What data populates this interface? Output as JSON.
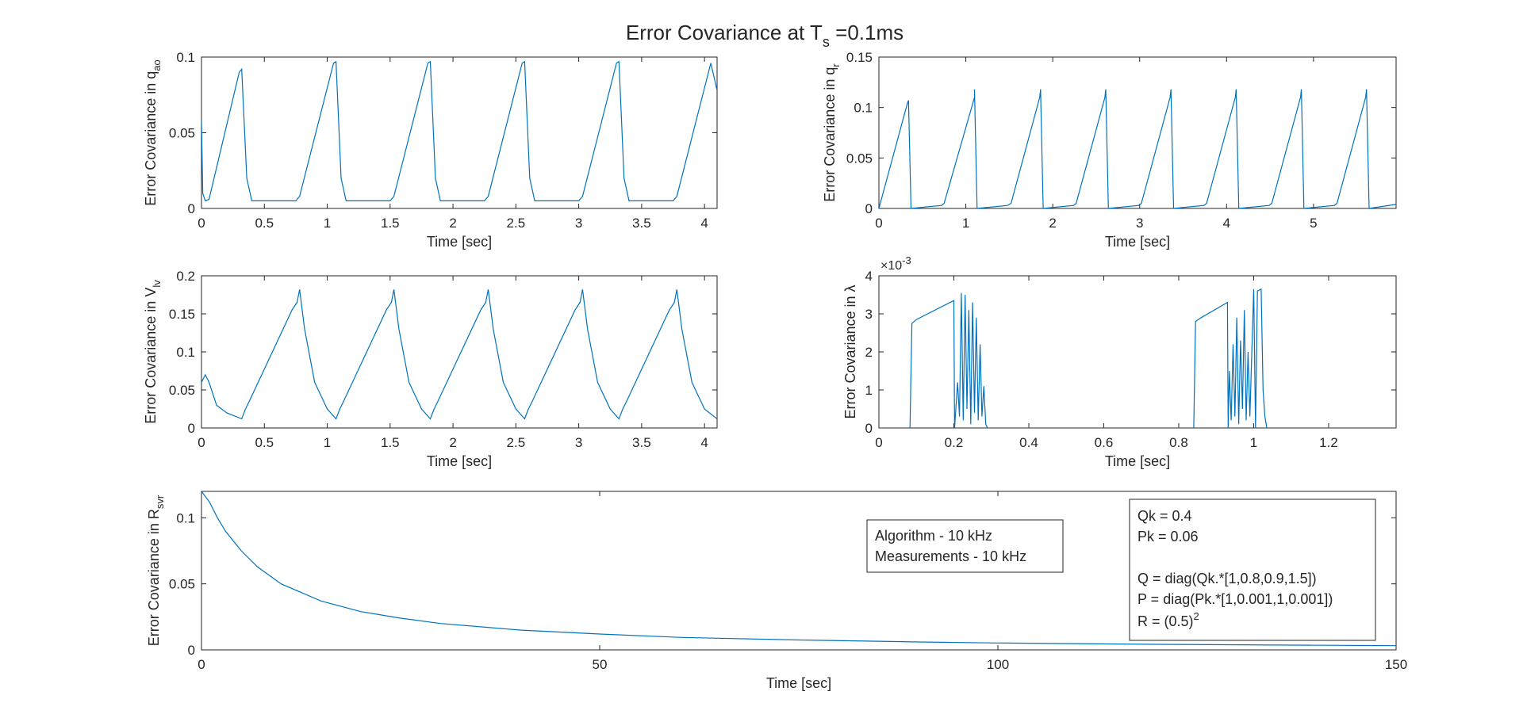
{
  "figure": {
    "title_main": "Error Covariance at T",
    "title_sub": "s",
    "title_tail": " =0.1ms"
  },
  "colors": {
    "line": "#0072BD",
    "axis": "#262626",
    "background": "#ffffff"
  },
  "chart_data": [
    {
      "type": "line",
      "ylabel_main": "Error Covariance in q",
      "ylabel_sub": "ao",
      "xlabel": "Time [sec]",
      "xlim": [
        0,
        4.1
      ],
      "ylim": [
        0,
        0.1
      ],
      "xticks": [
        0,
        0.5,
        1,
        1.5,
        2,
        2.5,
        3,
        3.5,
        4
      ],
      "xtick_labels": [
        "0",
        "0.5",
        "1",
        "1.5",
        "2",
        "2.5",
        "3",
        "3.5",
        "4"
      ],
      "yticks": [
        0,
        0.05,
        0.1
      ],
      "ytick_labels": [
        "0",
        "0.05",
        "0.1"
      ],
      "series": [
        {
          "x": [
            0,
            0.01,
            0.03,
            0.06,
            0.3,
            0.32,
            0.36,
            0.4,
            0.75,
            0.78,
            1.05,
            1.07,
            1.11,
            1.15,
            1.5,
            1.53,
            1.8,
            1.82,
            1.86,
            1.9,
            2.25,
            2.28,
            2.55,
            2.57,
            2.61,
            2.65,
            3.0,
            3.03,
            3.3,
            3.32,
            3.36,
            3.4,
            3.75,
            3.78,
            4.05,
            4.1
          ],
          "y": [
            0.058,
            0.01,
            0.005,
            0.006,
            0.09,
            0.092,
            0.02,
            0.005,
            0.005,
            0.008,
            0.096,
            0.097,
            0.02,
            0.005,
            0.005,
            0.008,
            0.096,
            0.097,
            0.02,
            0.005,
            0.005,
            0.008,
            0.096,
            0.097,
            0.02,
            0.005,
            0.005,
            0.008,
            0.096,
            0.097,
            0.02,
            0.005,
            0.005,
            0.008,
            0.096,
            0.078
          ]
        }
      ]
    },
    {
      "type": "line",
      "ylabel_main": "Error Covariance in q",
      "ylabel_sub": "r",
      "xlabel": "Time [sec]",
      "xlim": [
        0,
        5.95
      ],
      "ylim": [
        0,
        0.15
      ],
      "xticks": [
        0,
        1,
        2,
        3,
        4,
        5
      ],
      "xtick_labels": [
        "0",
        "1",
        "2",
        "3",
        "4",
        "5"
      ],
      "yticks": [
        0,
        0.05,
        0.1,
        0.15
      ],
      "ytick_labels": [
        "0",
        "0.05",
        "0.1",
        "0.15"
      ],
      "series": [
        {
          "x": [
            0,
            0.33,
            0.34,
            0.37,
            0.72,
            0.75,
            1.1,
            1.1,
            1.13,
            1.48,
            1.52,
            1.85,
            1.86,
            1.89,
            2.24,
            2.27,
            2.6,
            2.61,
            2.64,
            2.99,
            3.02,
            3.35,
            3.36,
            3.39,
            3.74,
            3.77,
            4.1,
            4.11,
            4.14,
            4.49,
            4.52,
            4.85,
            4.86,
            4.89,
            5.24,
            5.27,
            5.6,
            5.61,
            5.64,
            5.95
          ],
          "y": [
            0,
            0.105,
            0.107,
            0,
            0.003,
            0.005,
            0.11,
            0.118,
            0,
            0.003,
            0.005,
            0.11,
            0.118,
            0,
            0.003,
            0.005,
            0.11,
            0.118,
            0,
            0.003,
            0.005,
            0.11,
            0.118,
            0,
            0.003,
            0.005,
            0.11,
            0.118,
            0,
            0.003,
            0.005,
            0.11,
            0.118,
            0,
            0.003,
            0.005,
            0.11,
            0.118,
            0,
            0.004
          ]
        }
      ]
    },
    {
      "type": "line",
      "ylabel_main": "Error Covariance in V",
      "ylabel_sub": "lv",
      "xlabel": "Time [sec]",
      "xlim": [
        0,
        4.1
      ],
      "ylim": [
        0,
        0.2
      ],
      "xticks": [
        0,
        0.5,
        1,
        1.5,
        2,
        2.5,
        3,
        3.5,
        4
      ],
      "xtick_labels": [
        "0",
        "0.5",
        "1",
        "1.5",
        "2",
        "2.5",
        "3",
        "3.5",
        "4"
      ],
      "yticks": [
        0,
        0.05,
        0.1,
        0.15,
        0.2
      ],
      "ytick_labels": [
        "0",
        "0.05",
        "0.1",
        "0.15",
        "0.2"
      ],
      "series": [
        {
          "x": [
            0,
            0.03,
            0.06,
            0.12,
            0.2,
            0.32,
            0.35,
            0.38,
            0.72,
            0.76,
            0.78,
            0.82,
            0.9,
            1.0,
            1.07,
            1.1,
            1.13,
            1.47,
            1.51,
            1.53,
            1.57,
            1.65,
            1.75,
            1.82,
            1.85,
            1.88,
            2.22,
            2.26,
            2.28,
            2.32,
            2.4,
            2.5,
            2.57,
            2.6,
            2.63,
            2.97,
            3.01,
            3.03,
            3.07,
            3.15,
            3.25,
            3.32,
            3.35,
            3.38,
            3.72,
            3.76,
            3.78,
            3.82,
            3.9,
            4.0,
            4.1
          ],
          "y": [
            0.06,
            0.07,
            0.06,
            0.03,
            0.02,
            0.012,
            0.025,
            0.035,
            0.155,
            0.165,
            0.182,
            0.13,
            0.06,
            0.025,
            0.012,
            0.025,
            0.035,
            0.155,
            0.165,
            0.182,
            0.13,
            0.06,
            0.025,
            0.012,
            0.025,
            0.035,
            0.155,
            0.165,
            0.182,
            0.13,
            0.06,
            0.025,
            0.012,
            0.025,
            0.035,
            0.155,
            0.165,
            0.182,
            0.13,
            0.06,
            0.025,
            0.012,
            0.025,
            0.035,
            0.155,
            0.165,
            0.182,
            0.13,
            0.06,
            0.025,
            0.012
          ]
        }
      ]
    },
    {
      "type": "line",
      "ylabel_main": "Error Covariance in λ",
      "ylabel_sub": "",
      "xlabel": "Time [sec]",
      "exponent_base": "×10",
      "exponent_power": "-3",
      "xlim": [
        0,
        1.38
      ],
      "ylim": [
        0,
        4
      ],
      "xticks": [
        0,
        0.2,
        0.4,
        0.6,
        0.8,
        1,
        1.2
      ],
      "xtick_labels": [
        "0",
        "0.2",
        "0.4",
        "0.6",
        "0.8",
        "1",
        "1.2"
      ],
      "yticks": [
        0,
        1,
        2,
        3,
        4
      ],
      "ytick_labels": [
        "0",
        "1",
        "2",
        "3",
        "4"
      ],
      "series": [
        {
          "x": [
            0,
            0.083,
            0.088,
            0.1,
            0.2,
            0.202,
            0.21,
            0.215,
            0.22,
            0.225,
            0.23,
            0.235,
            0.24,
            0.245,
            0.25,
            0.255,
            0.26,
            0.265,
            0.27,
            0.275,
            0.28,
            0.285,
            0.29,
            0.84,
            0.845,
            0.86,
            0.93,
            0.932,
            0.935,
            0.94,
            0.945,
            0.95,
            0.955,
            0.96,
            0.965,
            0.97,
            0.975,
            0.98,
            0.985,
            0.99,
            1.0,
            1.005,
            1.01,
            1.02,
            1.025,
            1.03,
            1.035,
            1.38
          ],
          "y": [
            0,
            0,
            2.75,
            2.85,
            3.35,
            0,
            1.2,
            0.3,
            3.55,
            0.2,
            3.5,
            0.5,
            3.1,
            0.1,
            3.3,
            0.4,
            2.9,
            0.2,
            2.2,
            0.3,
            1.1,
            0.1,
            0,
            0,
            2.8,
            2.9,
            3.3,
            0,
            1.5,
            0.2,
            2.2,
            0.3,
            2.9,
            0.1,
            2.3,
            0.5,
            3.1,
            0.2,
            2.0,
            0.3,
            3.65,
            0,
            3.6,
            3.65,
            1.0,
            0.3,
            0,
            0
          ]
        }
      ]
    },
    {
      "type": "line",
      "ylabel_main": "Error Covariance in R",
      "ylabel_sub": "svr",
      "xlabel": "Time [sec]",
      "xlim": [
        0,
        150
      ],
      "ylim": [
        0,
        0.12
      ],
      "xticks": [
        0,
        50,
        100,
        150
      ],
      "xtick_labels": [
        "0",
        "50",
        "100",
        "150"
      ],
      "yticks": [
        0,
        0.05,
        0.1
      ],
      "ytick_labels": [
        "0",
        "0.05",
        "0.1"
      ],
      "series": [
        {
          "x": [
            0,
            1,
            2,
            3,
            5,
            7,
            10,
            15,
            20,
            25,
            30,
            40,
            50,
            60,
            75,
            90,
            100,
            120,
            150
          ],
          "y": [
            0.12,
            0.112,
            0.1,
            0.09,
            0.075,
            0.063,
            0.05,
            0.037,
            0.029,
            0.024,
            0.02,
            0.015,
            0.012,
            0.0095,
            0.0075,
            0.006,
            0.0052,
            0.0042,
            0.0032
          ]
        }
      ],
      "annotations": {
        "box1": [
          "Algorithm - 10 kHz",
          "Measurements - 10 kHz"
        ],
        "box2": {
          "qk": "Qk = 0.4",
          "pk": "Pk = 0.06",
          "q": "Q = diag(Qk.*[1,0.8,0.9,1.5])",
          "p": "P = diag(Pk.*[1,0.001,1,0.001])",
          "r_main": "R = (0.5)",
          "r_sup": "2"
        }
      }
    }
  ]
}
